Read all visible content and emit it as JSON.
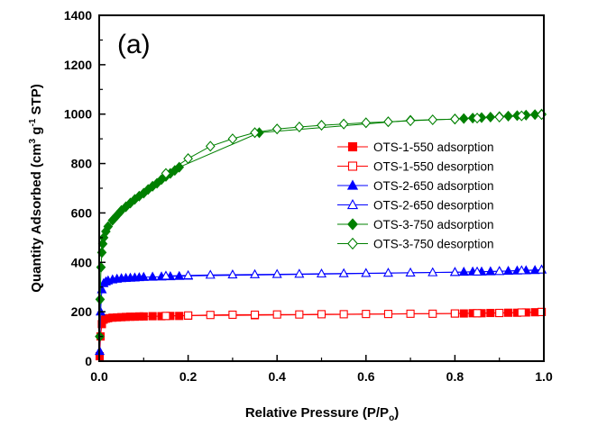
{
  "chart_data": {
    "type": "scatter",
    "panel_label": "(a)",
    "xlabel": "Relative Pressure (P/Po)",
    "ylabel": "Quantity Adsorbed (cm3 g-1 STP)",
    "xlim": [
      0.0,
      1.0
    ],
    "ylim": [
      0,
      1400
    ],
    "x_ticks": [
      "0.0",
      "0.2",
      "0.4",
      "0.6",
      "0.8",
      "1.0"
    ],
    "y_ticks": [
      "0",
      "200",
      "400",
      "600",
      "800",
      "1000",
      "1200",
      "1400"
    ],
    "legend_position": "center-right",
    "series": [
      {
        "name": "OTS-1-550 adsorption",
        "color": "#ff0000",
        "marker": "square",
        "filled": true,
        "x": [
          0.001,
          0.003,
          0.006,
          0.01,
          0.015,
          0.02,
          0.03,
          0.04,
          0.05,
          0.06,
          0.07,
          0.08,
          0.09,
          0.1,
          0.12,
          0.14,
          0.16,
          0.18,
          0.2,
          0.35,
          0.8,
          0.82,
          0.84,
          0.86,
          0.88,
          0.9,
          0.92,
          0.94,
          0.96,
          0.98,
          0.995
        ],
        "y": [
          20,
          100,
          150,
          168,
          172,
          174,
          176,
          177,
          178,
          179,
          180,
          180,
          181,
          181,
          182,
          182,
          183,
          183,
          184,
          186,
          193,
          193,
          194,
          194,
          195,
          195,
          196,
          196,
          197,
          198,
          199
        ]
      },
      {
        "name": "OTS-1-550 desorption",
        "color": "#ff0000",
        "marker": "square",
        "filled": false,
        "x": [
          0.995,
          0.95,
          0.9,
          0.85,
          0.8,
          0.75,
          0.7,
          0.65,
          0.6,
          0.55,
          0.5,
          0.45,
          0.4,
          0.35,
          0.3,
          0.25,
          0.2,
          0.15
        ],
        "y": [
          199,
          197,
          195,
          194,
          193,
          192,
          192,
          191,
          191,
          190,
          190,
          189,
          189,
          188,
          188,
          187,
          185,
          183
        ]
      },
      {
        "name": "OTS-2-650 adsorption",
        "color": "#0000ff",
        "marker": "triangle",
        "filled": true,
        "x": [
          0.001,
          0.003,
          0.006,
          0.01,
          0.015,
          0.02,
          0.03,
          0.04,
          0.05,
          0.06,
          0.07,
          0.08,
          0.09,
          0.1,
          0.12,
          0.14,
          0.16,
          0.18,
          0.2,
          0.8,
          0.82,
          0.84,
          0.86,
          0.88,
          0.9,
          0.92,
          0.94,
          0.96,
          0.98,
          0.995
        ],
        "y": [
          40,
          200,
          290,
          315,
          322,
          326,
          330,
          333,
          335,
          336,
          337,
          338,
          339,
          340,
          341,
          342,
          343,
          344,
          345,
          360,
          361,
          362,
          362,
          363,
          364,
          365,
          366,
          367,
          368,
          370
        ]
      },
      {
        "name": "OTS-2-650 desorption",
        "color": "#0000ff",
        "marker": "triangle",
        "filled": false,
        "x": [
          0.995,
          0.95,
          0.9,
          0.85,
          0.8,
          0.75,
          0.7,
          0.65,
          0.6,
          0.55,
          0.5,
          0.45,
          0.4,
          0.35,
          0.3,
          0.25,
          0.2,
          0.15
        ],
        "y": [
          370,
          367,
          364,
          362,
          360,
          359,
          358,
          357,
          356,
          355,
          354,
          353,
          352,
          351,
          350,
          349,
          347,
          345
        ]
      },
      {
        "name": "OTS-3-750 adsorption",
        "color": "#008000",
        "marker": "diamond",
        "filled": true,
        "x": [
          0.001,
          0.002,
          0.004,
          0.006,
          0.008,
          0.01,
          0.015,
          0.02,
          0.03,
          0.04,
          0.05,
          0.06,
          0.07,
          0.08,
          0.09,
          0.1,
          0.11,
          0.12,
          0.13,
          0.14,
          0.15,
          0.16,
          0.17,
          0.18,
          0.36,
          0.7,
          0.8,
          0.82,
          0.84,
          0.86,
          0.88,
          0.9,
          0.92,
          0.94,
          0.96,
          0.98,
          0.995
        ],
        "y": [
          100,
          250,
          380,
          440,
          475,
          500,
          525,
          545,
          570,
          590,
          610,
          625,
          640,
          655,
          668,
          680,
          695,
          708,
          720,
          735,
          748,
          760,
          772,
          785,
          925,
          975,
          980,
          982,
          984,
          986,
          988,
          990,
          992,
          994,
          996,
          998,
          1000
        ]
      },
      {
        "name": "OTS-3-750 desorption",
        "color": "#008000",
        "marker": "diamond",
        "filled": false,
        "x": [
          0.995,
          0.95,
          0.9,
          0.85,
          0.8,
          0.75,
          0.7,
          0.65,
          0.6,
          0.55,
          0.5,
          0.45,
          0.4,
          0.35,
          0.3,
          0.25,
          0.2,
          0.15
        ],
        "y": [
          998,
          993,
          988,
          984,
          980,
          977,
          973,
          969,
          965,
          960,
          955,
          948,
          940,
          925,
          900,
          870,
          820,
          760
        ]
      }
    ]
  }
}
